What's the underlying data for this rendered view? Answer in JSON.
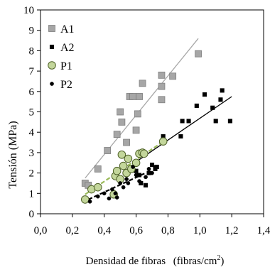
{
  "chart_data": {
    "type": "scatter",
    "title": "",
    "xlabel": "Densidad de fibras",
    "xlabel_unit_base": "(fibras/cm",
    "xlabel_unit_sup": "2",
    "xlabel_unit_close": ")",
    "ylabel": "Tensión (MPa)",
    "xlim": [
      0.0,
      1.4
    ],
    "ylim": [
      0,
      10
    ],
    "x_ticks": [
      "0,0",
      "0,2",
      "0,4",
      "0,6",
      "0,8",
      "1,0",
      "1,2",
      "1,4"
    ],
    "y_ticks": [
      "0",
      "1",
      "2",
      "3",
      "4",
      "5",
      "6",
      "7",
      "8",
      "9",
      "10"
    ],
    "grid": false,
    "legend_position": "top-left",
    "series": [
      {
        "name": "A1",
        "marker": "square",
        "color": "#a6a6a6",
        "stroke": "#7f7f7f",
        "points": [
          [
            0.28,
            1.5
          ],
          [
            0.3,
            1.4
          ],
          [
            0.36,
            2.2
          ],
          [
            0.42,
            3.1
          ],
          [
            0.48,
            3.9
          ],
          [
            0.5,
            5.0
          ],
          [
            0.51,
            4.5
          ],
          [
            0.54,
            3.5
          ],
          [
            0.56,
            5.75
          ],
          [
            0.58,
            5.75
          ],
          [
            0.6,
            4.1
          ],
          [
            0.61,
            4.9
          ],
          [
            0.62,
            5.75
          ],
          [
            0.64,
            6.4
          ],
          [
            0.76,
            6.25
          ],
          [
            0.76,
            6.8
          ],
          [
            0.76,
            5.6
          ],
          [
            0.83,
            6.75
          ],
          [
            0.99,
            7.85
          ]
        ],
        "trendline": {
          "x": [
            0.28,
            0.99
          ],
          "y": [
            1.75,
            8.6
          ],
          "color": "#a6a6a6",
          "dash": "solid"
        }
      },
      {
        "name": "A2",
        "marker": "square-small",
        "color": "#000000",
        "stroke": "#000000",
        "points": [
          [
            0.6,
            2.1
          ],
          [
            0.62,
            1.9
          ],
          [
            0.63,
            1.5
          ],
          [
            0.66,
            1.4
          ],
          [
            0.68,
            2.0
          ],
          [
            0.7,
            2.4
          ],
          [
            0.72,
            2.2
          ],
          [
            0.73,
            2.3
          ],
          [
            0.77,
            3.8
          ],
          [
            0.88,
            3.8
          ],
          [
            0.89,
            4.55
          ],
          [
            0.93,
            4.55
          ],
          [
            0.98,
            5.3
          ],
          [
            1.03,
            5.85
          ],
          [
            1.08,
            5.2
          ],
          [
            1.1,
            4.55
          ],
          [
            1.13,
            5.6
          ],
          [
            1.14,
            6.05
          ],
          [
            1.19,
            4.55
          ]
        ],
        "trendline": {
          "x": [
            0.6,
            1.2
          ],
          "y": [
            2.55,
            5.75
          ],
          "color": "#000000",
          "dash": "solid"
        }
      },
      {
        "name": "P1",
        "marker": "circle",
        "color": "#c3d69b",
        "stroke": "#4f6228",
        "points": [
          [
            0.28,
            0.7
          ],
          [
            0.32,
            1.2
          ],
          [
            0.36,
            1.3
          ],
          [
            0.46,
            0.95
          ],
          [
            0.47,
            1.85
          ],
          [
            0.48,
            2.1
          ],
          [
            0.5,
            1.7
          ],
          [
            0.51,
            2.9
          ],
          [
            0.52,
            2.35
          ],
          [
            0.54,
            2.0
          ],
          [
            0.55,
            2.7
          ],
          [
            0.57,
            2.2
          ],
          [
            0.6,
            2.5
          ],
          [
            0.62,
            2.95
          ],
          [
            0.64,
            3.0
          ],
          [
            0.65,
            2.95
          ],
          [
            0.77,
            3.55
          ]
        ],
        "trendline": {
          "x": [
            0.28,
            0.79
          ],
          "y": [
            0.95,
            3.65
          ],
          "color": "#9bbb59",
          "dash": "dashed"
        }
      },
      {
        "name": "P2",
        "marker": "dot",
        "color": "#000000",
        "stroke": "#000000",
        "points": [
          [
            0.31,
            0.6
          ],
          [
            0.36,
            0.85
          ],
          [
            0.4,
            1.0
          ],
          [
            0.43,
            0.75
          ],
          [
            0.45,
            1.2
          ],
          [
            0.47,
            1.0
          ],
          [
            0.48,
            0.8
          ],
          [
            0.5,
            1.5
          ],
          [
            0.52,
            1.3
          ],
          [
            0.54,
            1.7
          ],
          [
            0.55,
            1.5
          ],
          [
            0.58,
            2.3
          ],
          [
            0.6,
            1.9
          ],
          [
            0.62,
            1.6
          ],
          [
            0.63,
            1.5
          ],
          [
            0.66,
            1.8
          ],
          [
            0.68,
            2.2
          ],
          [
            0.7,
            2.0
          ],
          [
            0.72,
            2.3
          ]
        ],
        "trendline": {
          "x": [
            0.3,
            0.66
          ],
          "y": [
            0.7,
            2.0
          ],
          "color": "#000000",
          "dash": "dashed"
        }
      }
    ]
  }
}
